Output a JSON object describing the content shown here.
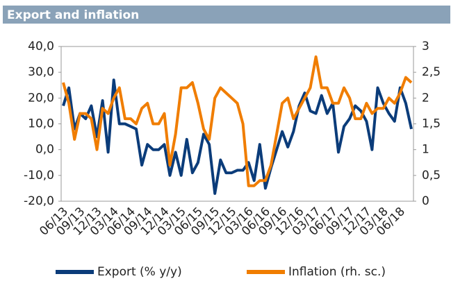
{
  "chart_data": {
    "type": "line",
    "title": "Export and inflation",
    "categories": [
      "06/13",
      null,
      null,
      "09/13",
      null,
      null,
      "12/13",
      null,
      null,
      "03/14",
      null,
      null,
      "06/14",
      null,
      null,
      "09/14",
      null,
      null,
      "12/14",
      null,
      null,
      "03/15",
      null,
      null,
      "06/15",
      null,
      null,
      "09/15",
      null,
      null,
      "12/15",
      null,
      null,
      "03/16",
      null,
      null,
      "06/16",
      null,
      null,
      "09/16",
      null,
      null,
      "12/16",
      null,
      null,
      "03/17",
      null,
      null,
      "06/17",
      null,
      null,
      "09/17",
      null,
      null,
      "12/17",
      null,
      null,
      "03/18",
      null,
      null,
      "06/18",
      null,
      null
    ],
    "series": [
      {
        "name": "Export (% y/y)",
        "color": "#0b3c7a",
        "axis": "y",
        "values": [
          17,
          24,
          8,
          14,
          12,
          17,
          5,
          19,
          -1,
          27,
          10,
          10,
          9,
          8,
          -6,
          2,
          0,
          0,
          2,
          -10,
          -1,
          -10,
          4,
          -9,
          -5,
          6,
          2,
          -17,
          -4,
          -9,
          -9,
          -8,
          -8,
          -5,
          -12,
          2,
          -15,
          -7,
          0,
          7,
          1,
          7,
          17,
          22,
          15,
          14,
          21,
          14,
          18,
          -1,
          9,
          12,
          17,
          15,
          11,
          0,
          24,
          18,
          14,
          11,
          24,
          18,
          8
        ]
      },
      {
        "name": "Inflation (rh. sc.)",
        "color": "#f07d00",
        "axis": "y2",
        "values": [
          2.3,
          1.9,
          1.2,
          1.7,
          1.7,
          1.6,
          1.0,
          1.8,
          1.7,
          2.0,
          2.2,
          1.6,
          1.6,
          1.5,
          1.8,
          1.9,
          1.5,
          1.5,
          1.7,
          0.7,
          1.3,
          2.2,
          2.2,
          2.3,
          1.9,
          1.4,
          1.2,
          2.0,
          2.2,
          2.1,
          2.0,
          1.9,
          1.5,
          0.3,
          0.3,
          0.4,
          0.4,
          0.7,
          1.3,
          1.9,
          2.0,
          1.6,
          1.8,
          2.0,
          2.2,
          2.8,
          2.2,
          2.2,
          1.9,
          1.9,
          2.2,
          2.0,
          1.6,
          1.6,
          1.9,
          1.7,
          1.8,
          1.8,
          2.0,
          1.9,
          2.1,
          2.4,
          2.3
        ]
      }
    ],
    "ylim": [
      -20,
      40
    ],
    "yticks": [
      {
        "value": -20,
        "label": "-20,0"
      },
      {
        "value": -10,
        "label": "-10,0"
      },
      {
        "value": 0,
        "label": "0,0"
      },
      {
        "value": 10,
        "label": "10,0"
      },
      {
        "value": 20,
        "label": "20,0"
      },
      {
        "value": 30,
        "label": "30,0"
      },
      {
        "value": 40,
        "label": "40,0"
      }
    ],
    "y2lim": [
      0,
      3
    ],
    "y2ticks": [
      0,
      {
        "value": 0.5,
        "label": "0,5"
      },
      1,
      {
        "value": 1.5,
        "label": "1,5"
      },
      2,
      {
        "value": 2.5,
        "label": "2,5"
      },
      3
    ],
    "legend": "bottom"
  }
}
